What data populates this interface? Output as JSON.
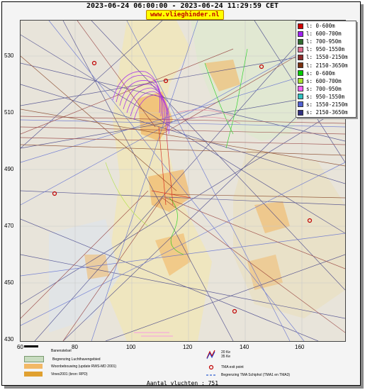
{
  "title": "2023-06-24 06:00:00 - 2023-06-24 11:29:59 CET",
  "brand": "www.vlieghinder.nl",
  "y_axis_labels": [
    "530",
    "510",
    "490",
    "470",
    "450",
    "430"
  ],
  "x_axis_labels": [
    "60",
    "80",
    "100",
    "120",
    "140",
    "160"
  ],
  "legend": [
    {
      "label": "l: 0-600m",
      "color": "#d00000"
    },
    {
      "label": "l: 600-700m",
      "color": "#a020f0"
    },
    {
      "label": "l: 700-950m",
      "color": "#2f6b2f"
    },
    {
      "label": "l: 950-1550m",
      "color": "#e07090"
    },
    {
      "label": "l: 1550-2150m",
      "color": "#8b2a2a"
    },
    {
      "label": "l: 2150-3650m",
      "color": "#7a3010"
    },
    {
      "label": "s: 0-600m",
      "color": "#00cc00"
    },
    {
      "label": "s: 600-700m",
      "color": "#a6e22e"
    },
    {
      "label": "s: 700-950m",
      "color": "#ff60ff"
    },
    {
      "label": "s: 950-1550m",
      "color": "#30c0c0"
    },
    {
      "label": "s: 1550-2150m",
      "color": "#5060d0"
    },
    {
      "label": "s: 2150-3650m",
      "color": "#303080"
    }
  ],
  "key": {
    "runway": "Banenstelsel",
    "airport_boundary": "Begrenzing Luchthavengebied",
    "housing": "Woonbebouwing (update RWS-MD 2001)",
    "vinex": "Vinex2001 (bron: RPD)",
    "ke": "20 Ke\n35 Ke",
    "tma_exit": "TMA exit point",
    "tma_boundary": "Begrenzing TMA Schiphol  (TMA1 en TMA3)"
  },
  "footer": "Aantal vluchten : 751"
}
